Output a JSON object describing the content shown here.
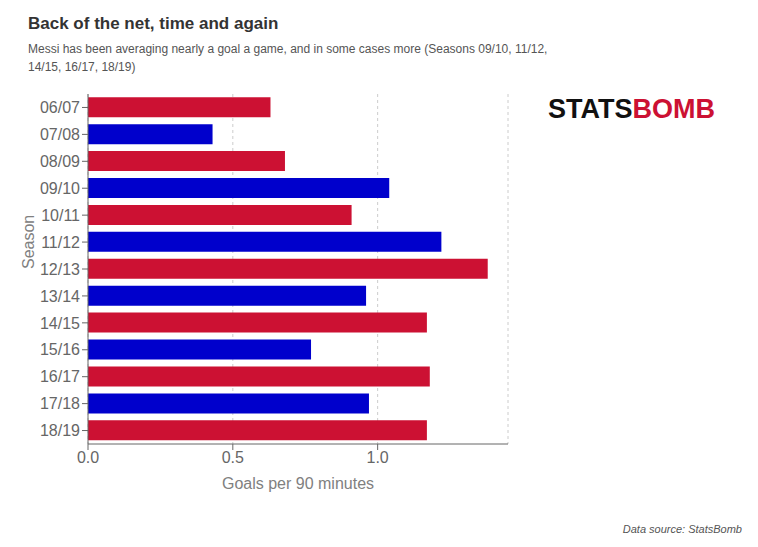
{
  "chart_data": {
    "type": "bar",
    "orientation": "horizontal",
    "title": "Back of the net, time and again",
    "subtitle": "Messi has been averaging nearly a goal a game, and in some cases more (Seasons 09/10, 11/12,\n14/15, 16/17, 18/19)",
    "xlabel": "Goals per 90 minutes",
    "ylabel": "Season",
    "categories": [
      "06/07",
      "07/08",
      "08/09",
      "09/10",
      "10/11",
      "11/12",
      "12/13",
      "13/14",
      "14/15",
      "15/16",
      "16/17",
      "17/18",
      "18/19"
    ],
    "values": [
      0.63,
      0.43,
      0.68,
      1.04,
      0.91,
      1.22,
      1.38,
      0.96,
      1.17,
      0.77,
      1.18,
      0.97,
      1.17
    ],
    "colors": [
      "#CC1133",
      "#0000CC",
      "#CC1133",
      "#0000CC",
      "#CC1133",
      "#0000CC",
      "#CC1133",
      "#0000CC",
      "#CC1133",
      "#0000CC",
      "#CC1133",
      "#0000CC",
      "#CC1133"
    ],
    "xlim": [
      0,
      1.45
    ],
    "xticks": [
      {
        "value": 0,
        "label": "0.0"
      },
      {
        "value": 0.5,
        "label": "0.5"
      },
      {
        "value": 1,
        "label": "1.0"
      }
    ],
    "grid": true,
    "annotations": [
      {
        "text": "STATS",
        "color": "#111111"
      },
      {
        "text": "BOMB",
        "color": "#CC1133"
      },
      {
        "text": "Data source: StatsBomb"
      }
    ]
  }
}
